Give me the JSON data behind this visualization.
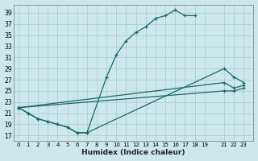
{
  "xlabel": "Humidex (Indice chaleur)",
  "bg_color": "#cce8ea",
  "grid_color": "#aac8ca",
  "line_color": "#1a6868",
  "xlim": [
    -0.5,
    24.0
  ],
  "ylim": [
    16.0,
    40.5
  ],
  "yticks": [
    17,
    19,
    21,
    23,
    25,
    27,
    29,
    31,
    33,
    35,
    37,
    39
  ],
  "xticks": [
    0,
    1,
    2,
    3,
    4,
    5,
    6,
    7,
    8,
    9,
    10,
    11,
    12,
    13,
    14,
    15,
    16,
    17,
    18,
    19,
    21,
    22,
    23
  ],
  "xtick_labels": [
    "0",
    "1",
    "2",
    "3",
    "4",
    "5",
    "6",
    "7",
    "8",
    "9",
    "10",
    "11",
    "12",
    "13",
    "14",
    "15",
    "16",
    "17",
    "18",
    "19",
    "21",
    "22",
    "23"
  ],
  "line1_x": [
    0,
    1,
    2,
    3,
    4,
    5,
    6,
    7,
    9,
    10,
    11,
    12,
    13,
    14,
    15,
    16,
    17,
    18
  ],
  "line1_y": [
    22,
    21,
    20,
    19.5,
    19,
    18.5,
    17.5,
    17.5,
    27.5,
    31.5,
    34.0,
    35.5,
    36.5,
    38.0,
    38.5,
    39.5,
    38.5,
    38.5
  ],
  "line2_x": [
    0,
    1,
    2,
    3,
    4,
    5,
    6,
    7,
    21,
    22,
    23
  ],
  "line2_y": [
    22,
    21,
    20,
    19.5,
    19,
    18.5,
    17.5,
    17.5,
    29.0,
    27.5,
    26.5
  ],
  "line3_x": [
    0,
    21,
    22,
    23
  ],
  "line3_y": [
    22,
    26.5,
    25.5,
    26.0
  ],
  "line4_x": [
    0,
    21,
    22,
    23
  ],
  "line4_y": [
    22,
    25.0,
    25.0,
    25.5
  ]
}
